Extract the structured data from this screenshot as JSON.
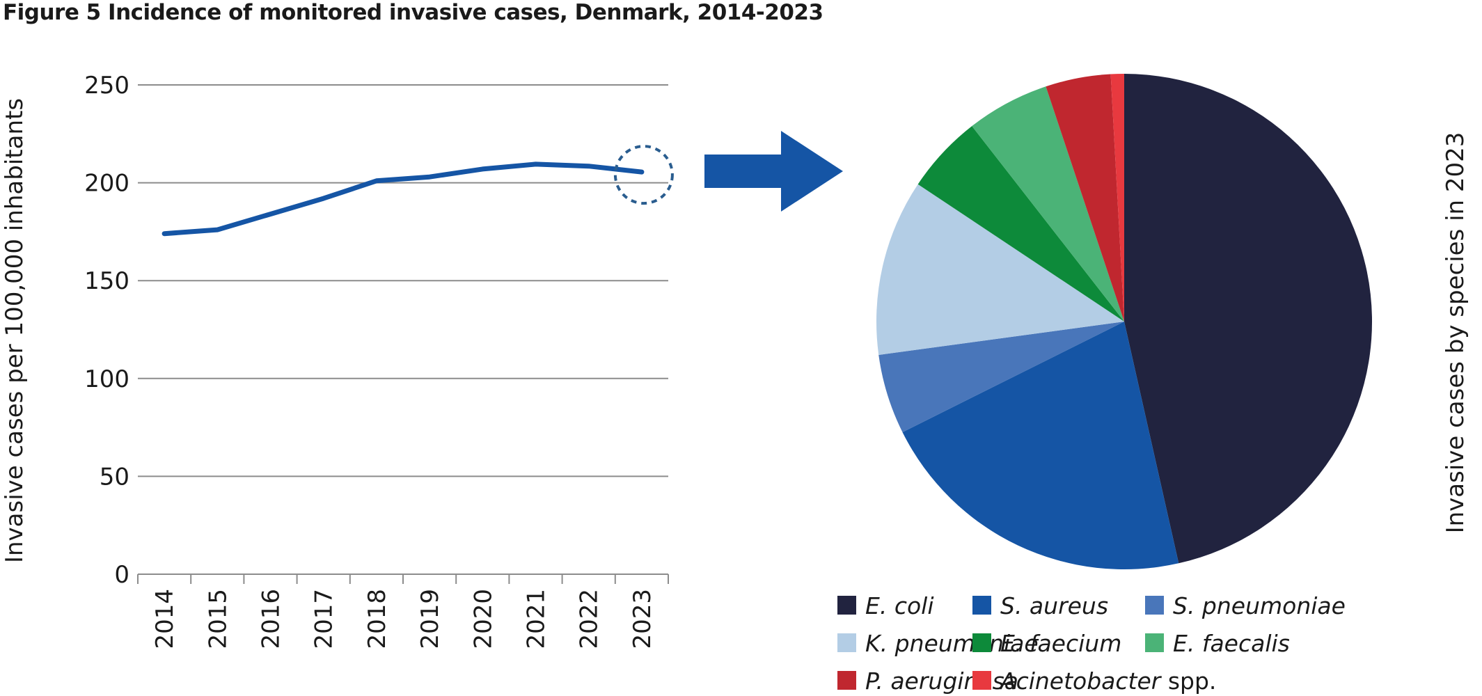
{
  "title": "Figure 5 Incidence of monitored invasive cases, Denmark, 2014-2023",
  "chart_data": [
    {
      "type": "line",
      "ylabel": "Invasive cases per 100,000 inhabitants",
      "xlabel": "",
      "ylim": [
        0,
        250
      ],
      "yticks": [
        "0",
        "50",
        "100",
        "150",
        "200",
        "250"
      ],
      "grid": true,
      "categories": [
        "2014",
        "2015",
        "2016",
        "2017",
        "2018",
        "2019",
        "2020",
        "2021",
        "2022",
        "2023"
      ],
      "series": [
        {
          "values": [
            174,
            176,
            184,
            192,
            201,
            203,
            207,
            209.5,
            208.5,
            205.5
          ],
          "color": "#1555a5"
        }
      ],
      "highlight": {
        "category": "2023",
        "marker": "dashed-circle",
        "color": "#2a5d8f"
      }
    },
    {
      "type": "pie",
      "title": "Invasive cases by species in 2023",
      "legend_position": "bottom",
      "slices": [
        {
          "name": "E. coli",
          "suffix": "",
          "value": 48.1,
          "color": "#21233f"
        },
        {
          "name": "S. aureus",
          "suffix": "",
          "value": 21.9,
          "color": "#1555a5"
        },
        {
          "name": "S. pneumoniae",
          "suffix": "",
          "value": 5.4,
          "color": "#4976ba"
        },
        {
          "name": "K. pneumoniae",
          "suffix": "",
          "value": 11.9,
          "color": "#b3cde5"
        },
        {
          "name": "E. faecium",
          "suffix": "",
          "value": 5.3,
          "color": "#0d8a3a"
        },
        {
          "name": "E. faecalis",
          "suffix": "",
          "value": 5.6,
          "color": "#4bb377"
        },
        {
          "name": "P. aeruginosa",
          "suffix": "",
          "value": 4.4,
          "color": "#c0272f"
        },
        {
          "name": "Acinetobacter",
          "suffix": " spp.",
          "value": 0.9,
          "color": "#e8393f"
        }
      ]
    }
  ],
  "arrow": {
    "color": "#1555a5"
  }
}
